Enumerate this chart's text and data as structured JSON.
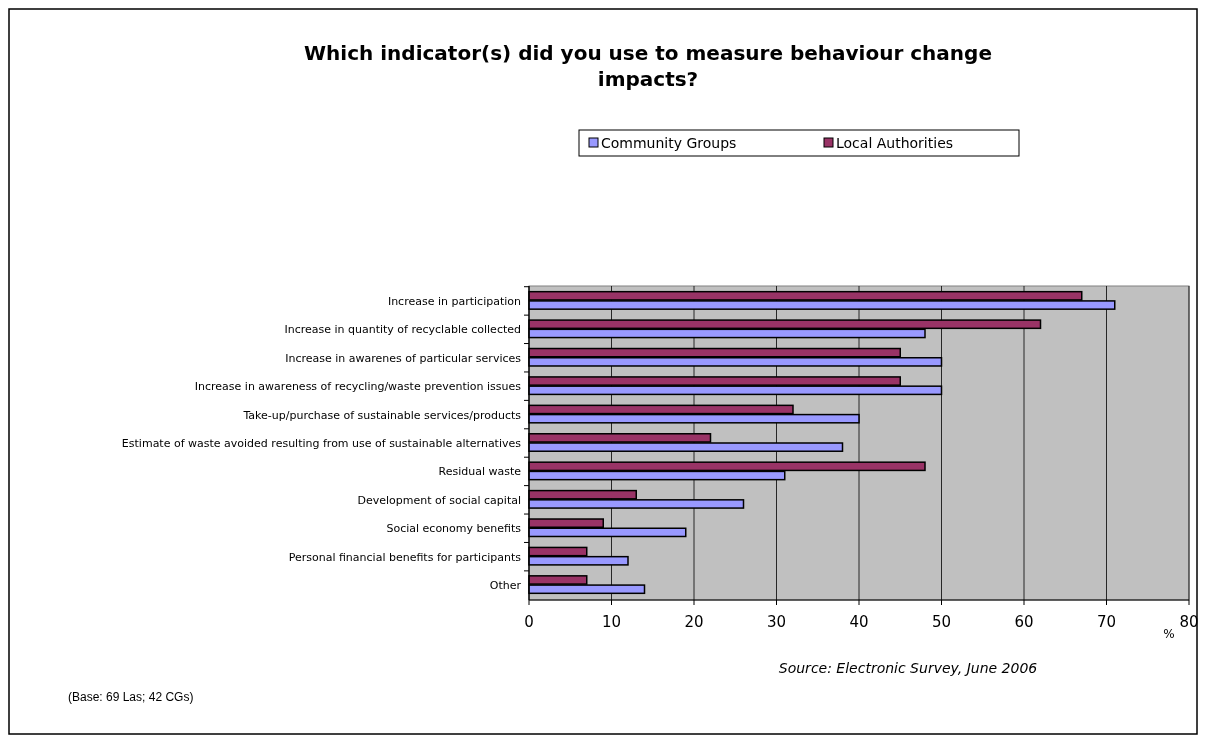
{
  "chart_data": {
    "type": "bar",
    "orientation": "horizontal",
    "title": "Which indicator(s) did you use to measure behaviour change impacts?",
    "xlabel": "%",
    "categories": [
      "Increase in participation",
      "Increase in quantity of recyclable collected",
      "Increase in awarenes of particular services",
      "Increase in awareness of recycling/waste prevention issues",
      "Take-up/purchase of sustainable services/products",
      "Estimate of waste avoided resulting from use of sustainable alternatives",
      "Residual waste",
      "Development of social capital",
      "Social economy benefits",
      "Personal financial benefits for participants",
      "Other"
    ],
    "series": [
      {
        "name": "Community Groups",
        "color": "#9999ff",
        "values": [
          71,
          48,
          50,
          50,
          40,
          38,
          31,
          26,
          19,
          12,
          14
        ]
      },
      {
        "name": "Local Authorities",
        "color": "#993366",
        "values": [
          67,
          62,
          45,
          45,
          32,
          22,
          48,
          13,
          9,
          7,
          7
        ]
      }
    ],
    "xlim": [
      0,
      80
    ],
    "xticks": [
      0,
      10,
      20,
      30,
      40,
      50,
      60,
      70,
      80
    ],
    "grid": "x",
    "legend": "top",
    "annotations": [
      "Source: Electronic Survey, June 2006",
      "(Base: 69 Las; 42 CGs)"
    ]
  }
}
